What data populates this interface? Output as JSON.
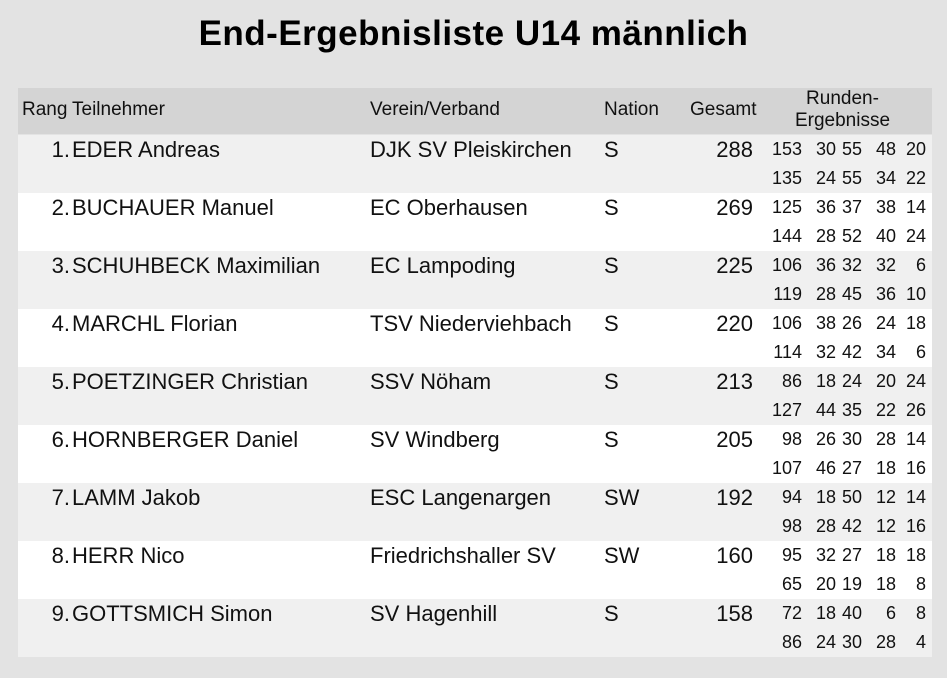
{
  "title": "End-Ergebnisliste U14 männlich",
  "table": {
    "columns": [
      "Rang",
      "Teilnehmer",
      "Verein/Verband",
      "Nation",
      "Gesamt",
      "Runden-Ergebnisse"
    ],
    "rows": [
      {
        "rank": "1.",
        "name": "EDER Andreas",
        "club": "DJK SV Pleiskirchen",
        "nation": "S",
        "total": 288,
        "rounds": [
          [
            153,
            30,
            55,
            48,
            20
          ],
          [
            135,
            24,
            55,
            34,
            22
          ]
        ]
      },
      {
        "rank": "2.",
        "name": "BUCHAUER Manuel",
        "club": "EC Oberhausen",
        "nation": "S",
        "total": 269,
        "rounds": [
          [
            125,
            36,
            37,
            38,
            14
          ],
          [
            144,
            28,
            52,
            40,
            24
          ]
        ]
      },
      {
        "rank": "3.",
        "name": "SCHUHBECK Maximilian",
        "club": "EC Lampoding",
        "nation": "S",
        "total": 225,
        "rounds": [
          [
            106,
            36,
            32,
            32,
            6
          ],
          [
            119,
            28,
            45,
            36,
            10
          ]
        ]
      },
      {
        "rank": "4.",
        "name": "MARCHL Florian",
        "club": "TSV Niederviehbach",
        "nation": "S",
        "total": 220,
        "rounds": [
          [
            106,
            38,
            26,
            24,
            18
          ],
          [
            114,
            32,
            42,
            34,
            6
          ]
        ]
      },
      {
        "rank": "5.",
        "name": "POETZINGER Christian",
        "club": "SSV Nöham",
        "nation": "S",
        "total": 213,
        "rounds": [
          [
            86,
            18,
            24,
            20,
            24
          ],
          [
            127,
            44,
            35,
            22,
            26
          ]
        ]
      },
      {
        "rank": "6.",
        "name": "HORNBERGER Daniel",
        "club": "SV Windberg",
        "nation": "S",
        "total": 205,
        "rounds": [
          [
            98,
            26,
            30,
            28,
            14
          ],
          [
            107,
            46,
            27,
            18,
            16
          ]
        ]
      },
      {
        "rank": "7.",
        "name": "LAMM Jakob",
        "club": "ESC Langenargen",
        "nation": "SW",
        "total": 192,
        "rounds": [
          [
            94,
            18,
            50,
            12,
            14
          ],
          [
            98,
            28,
            42,
            12,
            16
          ]
        ]
      },
      {
        "rank": "8.",
        "name": "HERR Nico",
        "club": "Friedrichshaller SV",
        "nation": "SW",
        "total": 160,
        "rounds": [
          [
            95,
            32,
            27,
            18,
            18
          ],
          [
            65,
            20,
            19,
            18,
            8
          ]
        ]
      },
      {
        "rank": "9.",
        "name": "GOTTSMICH Simon",
        "club": "SV Hagenhill",
        "nation": "S",
        "total": 158,
        "rounds": [
          [
            72,
            18,
            40,
            6,
            8
          ],
          [
            86,
            24,
            30,
            28,
            4
          ]
        ]
      }
    ]
  }
}
